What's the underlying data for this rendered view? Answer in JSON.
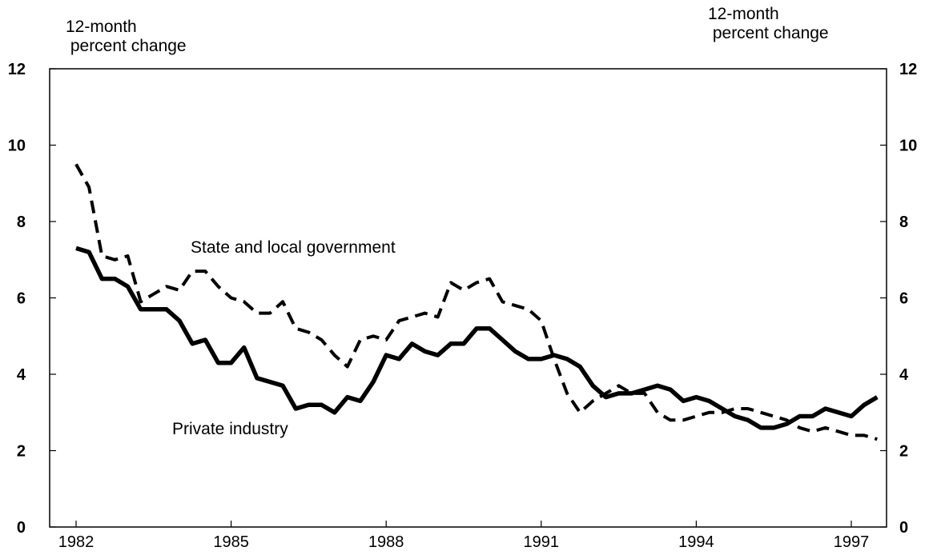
{
  "y_axis_unit_left": {
    "line1": "12-month",
    "line2": " percent change"
  },
  "y_axis_unit_right": {
    "line1": "12-month",
    "line2": " percent change"
  },
  "chart_data": {
    "type": "line",
    "title": "",
    "xlabel": "",
    "ylabel": "12-month percent change",
    "ylim": [
      0,
      12
    ],
    "y_ticks": [
      0,
      2,
      4,
      6,
      8,
      10,
      12
    ],
    "x_ticks": [
      "1982",
      "1985",
      "1988",
      "1991",
      "1994",
      "1997"
    ],
    "xlim": [
      1982,
      1997.6
    ],
    "grid": false,
    "legend": "labels on chart",
    "x": [
      1982.0,
      1982.25,
      1982.5,
      1982.75,
      1983.0,
      1983.25,
      1983.5,
      1983.75,
      1984.0,
      1984.25,
      1984.5,
      1984.75,
      1985.0,
      1985.25,
      1985.5,
      1985.75,
      1986.0,
      1986.25,
      1986.5,
      1986.75,
      1987.0,
      1987.25,
      1987.5,
      1987.75,
      1988.0,
      1988.25,
      1988.5,
      1988.75,
      1989.0,
      1989.25,
      1989.5,
      1989.75,
      1990.0,
      1990.25,
      1990.5,
      1990.75,
      1991.0,
      1991.25,
      1991.5,
      1991.75,
      1992.0,
      1992.25,
      1992.5,
      1992.75,
      1993.0,
      1993.25,
      1993.5,
      1993.75,
      1994.0,
      1994.25,
      1994.5,
      1994.75,
      1995.0,
      1995.25,
      1995.5,
      1995.75,
      1996.0,
      1996.25,
      1996.5,
      1996.75,
      1997.0,
      1997.25,
      1997.5
    ],
    "series": [
      {
        "name": "Private industry",
        "style": "solid",
        "color": "#000000",
        "values": [
          7.3,
          7.2,
          6.5,
          6.5,
          6.3,
          5.7,
          5.7,
          5.7,
          5.4,
          4.8,
          4.9,
          4.3,
          4.3,
          4.7,
          3.9,
          3.8,
          3.7,
          3.1,
          3.2,
          3.2,
          3.0,
          3.4,
          3.3,
          3.8,
          4.5,
          4.4,
          4.8,
          4.6,
          4.5,
          4.8,
          4.8,
          5.2,
          5.2,
          4.9,
          4.6,
          4.4,
          4.4,
          4.5,
          4.4,
          4.2,
          3.7,
          3.4,
          3.5,
          3.5,
          3.6,
          3.7,
          3.6,
          3.3,
          3.4,
          3.3,
          3.1,
          2.9,
          2.8,
          2.6,
          2.6,
          2.7,
          2.9,
          2.9,
          3.1,
          3.0,
          2.9,
          3.2,
          3.4
        ]
      },
      {
        "name": "State and local government",
        "style": "dashed",
        "color": "#000000",
        "values": [
          9.5,
          8.9,
          7.1,
          7.0,
          7.1,
          5.9,
          6.1,
          6.3,
          6.2,
          6.7,
          6.7,
          6.3,
          6.0,
          5.9,
          5.6,
          5.6,
          5.9,
          5.2,
          5.1,
          4.9,
          4.5,
          4.2,
          4.9,
          5.0,
          4.9,
          5.4,
          5.5,
          5.6,
          5.5,
          6.4,
          6.2,
          6.4,
          6.5,
          5.9,
          5.8,
          5.7,
          5.4,
          4.4,
          3.5,
          3.0,
          3.3,
          3.5,
          3.7,
          3.5,
          3.5,
          3.0,
          2.8,
          2.8,
          2.9,
          3.0,
          3.0,
          3.1,
          3.1,
          3.0,
          2.9,
          2.8,
          2.6,
          2.5,
          2.6,
          2.5,
          2.4,
          2.4,
          2.3
        ]
      }
    ]
  }
}
